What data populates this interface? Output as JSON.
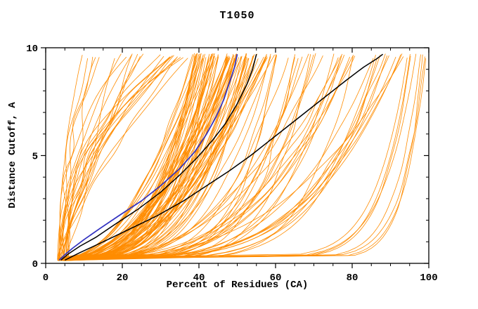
{
  "chart_data": {
    "type": "line",
    "title": "T1050",
    "xlabel": "Percent of Residues (CA)",
    "ylabel": "Distance Cutoff, A",
    "xlim": [
      0,
      100
    ],
    "ylim": [
      0,
      10
    ],
    "xticks": [
      0,
      20,
      40,
      60,
      80,
      100
    ],
    "yticks": [
      0,
      5,
      10
    ],
    "x_minor_step": 5,
    "y_minor_step": 1,
    "grid": false,
    "legend": "none",
    "colors": {
      "ensemble": "#ff8c00",
      "highlight": "#000000",
      "special": "#3030c0",
      "axis": "#000000",
      "background": "#ffffff"
    },
    "series": [
      {
        "name": "highlight-model-1",
        "color": "#000000",
        "width": 1.5,
        "points": [
          [
            4,
            0.15
          ],
          [
            6,
            0.45
          ],
          [
            9,
            0.8
          ],
          [
            13,
            1.2
          ],
          [
            18,
            1.8
          ],
          [
            24,
            2.5
          ],
          [
            30,
            3.3
          ],
          [
            35,
            4.1
          ],
          [
            39.5,
            4.9
          ],
          [
            43.5,
            5.7
          ],
          [
            47,
            6.5
          ],
          [
            50,
            7.4
          ],
          [
            52.5,
            8.3
          ],
          [
            54,
            9.0
          ],
          [
            55,
            9.7
          ]
        ]
      },
      {
        "name": "highlight-model-2",
        "color": "#000000",
        "width": 1.5,
        "points": [
          [
            5,
            0.15
          ],
          [
            9,
            0.5
          ],
          [
            15,
            1.0
          ],
          [
            22,
            1.6
          ],
          [
            29,
            2.2
          ],
          [
            36,
            2.9
          ],
          [
            42,
            3.6
          ],
          [
            48,
            4.3
          ],
          [
            53.5,
            5.0
          ],
          [
            58.5,
            5.7
          ],
          [
            63.5,
            6.4
          ],
          [
            68.5,
            7.1
          ],
          [
            73.5,
            7.8
          ],
          [
            78.5,
            8.5
          ],
          [
            83,
            9.1
          ],
          [
            86.5,
            9.5
          ],
          [
            88,
            9.7
          ]
        ]
      },
      {
        "name": "special-model-blue",
        "color": "#3030c0",
        "width": 1.7,
        "points": [
          [
            3.5,
            0.15
          ],
          [
            5,
            0.4
          ],
          [
            7,
            0.7
          ],
          [
            10,
            1.1
          ],
          [
            14,
            1.6
          ],
          [
            19,
            2.2
          ],
          [
            25,
            2.9
          ],
          [
            30,
            3.6
          ],
          [
            35,
            4.4
          ],
          [
            39,
            5.2
          ],
          [
            42,
            6.0
          ],
          [
            44.5,
            6.8
          ],
          [
            46.5,
            7.6
          ],
          [
            48,
            8.4
          ],
          [
            49.3,
            9.1
          ],
          [
            50,
            9.7
          ]
        ]
      }
    ],
    "ensemble": {
      "name": "model-ensemble",
      "color": "#ff8c00",
      "width": 0.8,
      "seed": 20,
      "count": 148,
      "clusters": [
        {
          "label": "left-fan",
          "count": 25,
          "xtop": [
            9,
            38
          ],
          "k": [
            0.8,
            2.8
          ],
          "wiggle": 1.6
        },
        {
          "label": "main-bundle",
          "count": 80,
          "xtop": [
            38,
            60
          ],
          "k": [
            0.22,
            0.55
          ],
          "wiggle": 0.7
        },
        {
          "label": "right-sweep",
          "count": 35,
          "xtop": [
            58,
            95
          ],
          "k": [
            0.15,
            0.4
          ],
          "wiggle": 1.0
        },
        {
          "label": "bottom-right-outliers",
          "count": 8,
          "xtop": [
            93,
            99.5
          ],
          "k": [
            0.05,
            0.12
          ],
          "wiggle": 0.3
        }
      ]
    }
  }
}
